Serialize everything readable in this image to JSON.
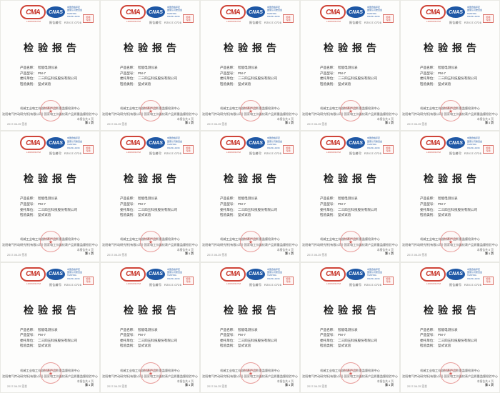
{
  "page": {
    "grid": {
      "cols": 5,
      "rows": 3,
      "count": 15
    }
  },
  "colors": {
    "stamp_red": "#cf4438",
    "cnas_blue": "#1e57a5",
    "page_bg": "#fdfdfc",
    "title_text": "#1c1c1c"
  },
  "report": {
    "cma": {
      "label": "CMA",
      "sub": "L2016003176Z"
    },
    "cnas": {
      "label": "CNAS",
      "lines": [
        "中国合格评定",
        "国家认可委员会",
        "TESTING",
        "CNAS L1234"
      ]
    },
    "report_no": {
      "label": "报告编号：",
      "value": "R2017-0726"
    },
    "box_stamp": {
      "line1": "检验",
      "line2": "专用"
    },
    "title": "检验报告",
    "fields": [
      {
        "label": "产品名称：",
        "value": "智能电测仪表"
      },
      {
        "label": "产品型号：",
        "value": "PM-7"
      },
      {
        "label": "委托单位：",
        "value": "二三四五科技股份有限公司"
      },
      {
        "label": "检验类别：",
        "value": "型式试验"
      }
    ],
    "seal": {
      "star": "★",
      "text": "检验检测专用章"
    },
    "footer": {
      "line1": "机械工业电工仪器仪表产品质量监督检测中心",
      "line2": "沈阳电气传动研究所(有限公司)·国家电工仪器仪表产品质量监督检验中心",
      "issue_date": "2017-06-25 签发",
      "pages_line1": "本报告共 8 页",
      "pages_line2": "第 1 页"
    }
  }
}
